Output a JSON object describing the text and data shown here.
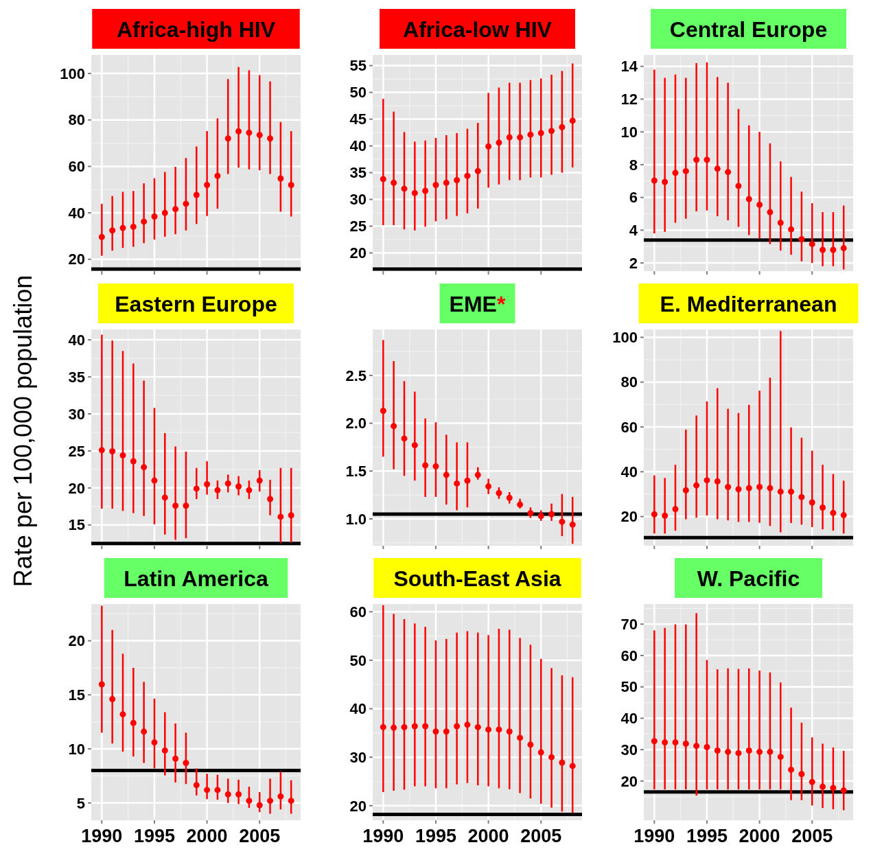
{
  "chart_data": [
    {
      "type": "scatter",
      "title": "Africa-high HIV",
      "x": [
        1990,
        1991,
        1992,
        1993,
        1994,
        1995,
        1996,
        1997,
        1998,
        1999,
        2000,
        2001,
        2002,
        2003,
        2004,
        2005,
        2006,
        2007,
        2008
      ],
      "values": [
        29.6,
        32.4,
        33.5,
        34,
        36.2,
        38.4,
        40,
        41.6,
        43.9,
        47.7,
        52,
        55.9,
        72,
        75.1,
        74.5,
        73.5,
        72,
        54.8,
        52
      ],
      "errors": [
        [
          21.5,
          43.9
        ],
        [
          23.7,
          47.2
        ],
        [
          24.9,
          49
        ],
        [
          25.4,
          49.4
        ],
        [
          26.9,
          52.7
        ],
        [
          28.5,
          54.9
        ],
        [
          29.7,
          57.6
        ],
        [
          30.8,
          59.8
        ],
        [
          32.4,
          63.6
        ],
        [
          35.2,
          68.6
        ],
        [
          38.6,
          75.2
        ],
        [
          41.8,
          80.7
        ],
        [
          56.7,
          97.6
        ],
        [
          59.5,
          102.8
        ],
        [
          58.7,
          101.4
        ],
        [
          58.3,
          99.3
        ],
        [
          56.7,
          96.6
        ],
        [
          40.5,
          79.1
        ],
        [
          38.4,
          75.2
        ]
      ],
      "color": "#ff0000",
      "marker": "circle",
      "xlim": [
        1989,
        2008.9
      ],
      "xticks": [
        1990,
        1995,
        2000,
        2005
      ],
      "ylim": [
        14.9,
        108
      ],
      "yticks": [
        20,
        40,
        60,
        80,
        100
      ],
      "grid": true,
      "tick_labels": "y",
      "ref_lines": [
        {
          "axis": "y",
          "value": 15.8,
          "color": "#000000"
        }
      ]
    },
    {
      "type": "scatter",
      "title": "Africa-low HIV",
      "x": [
        1990,
        1991,
        1992,
        1993,
        1994,
        1995,
        1996,
        1997,
        1998,
        1999,
        2000,
        2001,
        2002,
        2003,
        2004,
        2005,
        2006,
        2007,
        2008
      ],
      "values": [
        33.8,
        33.1,
        32,
        31.2,
        31.6,
        32.7,
        33.1,
        33.6,
        34.4,
        35.3,
        39.9,
        40.6,
        41.6,
        41.6,
        42.1,
        42.4,
        42.8,
        43.5,
        44.7
      ],
      "errors": [
        [
          25.2,
          48.8
        ],
        [
          25.2,
          46.4
        ],
        [
          24.4,
          42.6
        ],
        [
          24.2,
          40.8
        ],
        [
          24.9,
          41
        ],
        [
          25.9,
          41.5
        ],
        [
          26.3,
          42
        ],
        [
          26.9,
          42.4
        ],
        [
          27.4,
          43.2
        ],
        [
          28.3,
          44.3
        ],
        [
          32.2,
          49.9
        ],
        [
          32.8,
          50.9
        ],
        [
          33.6,
          51.8
        ],
        [
          33.6,
          51.8
        ],
        [
          34.1,
          52.3
        ],
        [
          34.1,
          52.6
        ],
        [
          34.6,
          53.3
        ],
        [
          35,
          54
        ],
        [
          36,
          55.4
        ]
      ],
      "color": "#ff0000",
      "marker": "circle",
      "xlim": [
        1989,
        2008.9
      ],
      "xticks": [
        1990,
        1995,
        2000,
        2005
      ],
      "ylim": [
        16.6,
        57
      ],
      "yticks": [
        20,
        25,
        30,
        35,
        40,
        45,
        50,
        55
      ],
      "grid": true,
      "tick_labels": "y",
      "ref_lines": [
        {
          "axis": "y",
          "value": 17,
          "color": "#000000"
        }
      ]
    },
    {
      "type": "scatter",
      "title": "Central Europe",
      "x": [
        1990,
        1991,
        1992,
        1993,
        1994,
        1995,
        1996,
        1997,
        1998,
        1999,
        2000,
        2001,
        2002,
        2003,
        2004,
        2005,
        2006,
        2007,
        2008
      ],
      "values": [
        7.03,
        6.95,
        7.5,
        7.6,
        8.3,
        8.3,
        7.75,
        7.55,
        6.7,
        5.9,
        5.55,
        5.1,
        4.45,
        4.05,
        3.45,
        3.15,
        2.8,
        2.8,
        2.9
      ],
      "errors": [
        [
          3.8,
          13.8
        ],
        [
          3.9,
          13.3
        ],
        [
          4.45,
          13.5
        ],
        [
          4.7,
          13.3
        ],
        [
          5.15,
          14.2
        ],
        [
          5.2,
          14.25
        ],
        [
          4.85,
          13.35
        ],
        [
          4.6,
          13
        ],
        [
          4.2,
          11.4
        ],
        [
          3.7,
          10.4
        ],
        [
          3.5,
          10
        ],
        [
          3.15,
          9.3
        ],
        [
          2.75,
          8.2
        ],
        [
          2.5,
          7.25
        ],
        [
          2.1,
          6.35
        ],
        [
          2,
          5.65
        ],
        [
          1.8,
          5.1
        ],
        [
          1.8,
          5.1
        ],
        [
          1.6,
          5.5
        ]
      ],
      "color": "#ff0000",
      "marker": "circle",
      "xlim": [
        1989,
        2008.9
      ],
      "xticks": [
        1990,
        1995,
        2000,
        2005
      ],
      "ylim": [
        1.5,
        14.7
      ],
      "yticks": [
        2,
        4,
        6,
        8,
        10,
        12,
        14
      ],
      "grid": true,
      "tick_labels": "y",
      "ref_lines": [
        {
          "axis": "y",
          "value": 3.4,
          "color": "#000000"
        }
      ]
    },
    {
      "type": "scatter",
      "title": "Eastern Europe",
      "ylabel": "Rate per 100,000 population",
      "x": [
        1990,
        1991,
        1992,
        1993,
        1994,
        1995,
        1996,
        1997,
        1998,
        1999,
        2000,
        2001,
        2002,
        2003,
        2004,
        2005,
        2006,
        2007,
        2008
      ],
      "values": [
        25.1,
        24.95,
        24.4,
        23.6,
        22.8,
        21,
        18.7,
        17.6,
        17.6,
        19.9,
        20.5,
        19.7,
        20.6,
        20.2,
        19.7,
        21,
        18.5,
        16.1,
        16.3
      ],
      "errors": [
        [
          17.2,
          40.7
        ],
        [
          17.2,
          39.9
        ],
        [
          16.9,
          38.5
        ],
        [
          16.6,
          36.8
        ],
        [
          16.2,
          34.5
        ],
        [
          15.1,
          30.8
        ],
        [
          13.7,
          27.4
        ],
        [
          13,
          25.6
        ],
        [
          13.2,
          24.9
        ],
        [
          18.5,
          22.7
        ],
        [
          19.1,
          23.6
        ],
        [
          18.5,
          21
        ],
        [
          19.4,
          21.8
        ],
        [
          19,
          21.6
        ],
        [
          18.5,
          21
        ],
        [
          19.5,
          22.4
        ],
        [
          16.3,
          21.1
        ],
        [
          12.6,
          22.7
        ],
        [
          12.6,
          22.7
        ]
      ],
      "color": "#ff0000",
      "marker": "circle",
      "xlim": [
        1989,
        2008.9
      ],
      "xticks": [
        1990,
        1995,
        2000,
        2005
      ],
      "ylim": [
        12.2,
        41.4
      ],
      "yticks": [
        15,
        20,
        25,
        30,
        35,
        40
      ],
      "grid": true,
      "tick_labels": "y",
      "ref_lines": [
        {
          "axis": "y",
          "value": 12.5,
          "color": "#000000"
        }
      ]
    },
    {
      "type": "scatter",
      "title": "EME*",
      "x": [
        1990,
        1991,
        1992,
        1993,
        1994,
        1995,
        1996,
        1997,
        1998,
        1999,
        2000,
        2001,
        2002,
        2003,
        2004,
        2005,
        2006,
        2007,
        2008
      ],
      "values": [
        2.13,
        1.97,
        1.84,
        1.77,
        1.56,
        1.55,
        1.46,
        1.37,
        1.4,
        1.46,
        1.34,
        1.27,
        1.22,
        1.15,
        1.06,
        1.03,
        1.05,
        0.97,
        0.94
      ],
      "errors": [
        [
          1.65,
          2.87
        ],
        [
          1.52,
          2.65
        ],
        [
          1.45,
          2.44
        ],
        [
          1.4,
          2.33
        ],
        [
          1.23,
          2.05
        ],
        [
          1.23,
          2.01
        ],
        [
          1.15,
          1.88
        ],
        [
          1.09,
          1.8
        ],
        [
          1.12,
          1.8
        ],
        [
          1.41,
          1.54
        ],
        [
          1.26,
          1.42
        ],
        [
          1.21,
          1.33
        ],
        [
          1.16,
          1.28
        ],
        [
          1.11,
          1.21
        ],
        [
          1.01,
          1.12
        ],
        [
          0.98,
          1.09
        ],
        [
          0.98,
          1.16
        ],
        [
          0.82,
          1.26
        ],
        [
          0.74,
          1.23
        ]
      ],
      "color": "#ff0000",
      "marker": "circle",
      "xlim": [
        1989,
        2008.9
      ],
      "xticks": [
        1990,
        1995,
        2000,
        2005
      ],
      "ylim": [
        0.72,
        2.98
      ],
      "yticks": [
        {
          "value": 1,
          "label": "1.0"
        },
        1.5,
        {
          "value": 2,
          "label": "2.0"
        },
        2.5
      ],
      "grid": true,
      "tick_labels": "y",
      "ref_lines": [
        {
          "axis": "y",
          "value": 1.05,
          "color": "#000000"
        }
      ]
    },
    {
      "type": "scatter",
      "title": "E. Mediterranean",
      "x": [
        1990,
        1991,
        1992,
        1993,
        1994,
        1995,
        1996,
        1997,
        1998,
        1999,
        2000,
        2001,
        2002,
        2003,
        2004,
        2005,
        2006,
        2007,
        2008
      ],
      "values": [
        21,
        20.4,
        23.3,
        31.7,
        33.9,
        36.2,
        35.7,
        33.2,
        32.2,
        32.7,
        33.2,
        32.7,
        31.1,
        31.1,
        28.7,
        26.3,
        24,
        21.6,
        20.6
      ],
      "errors": [
        [
          12.4,
          38.4
        ],
        [
          12.4,
          37.2
        ],
        [
          13.7,
          43.1
        ],
        [
          18.8,
          58.8
        ],
        [
          19.5,
          65.1
        ],
        [
          20.5,
          71.4
        ],
        [
          18.8,
          77.3
        ],
        [
          18.3,
          68.1
        ],
        [
          17.6,
          66.2
        ],
        [
          17.6,
          69.9
        ],
        [
          17.2,
          76.2
        ],
        [
          15.8,
          82
        ],
        [
          13,
          102.8
        ],
        [
          17.1,
          59.8
        ],
        [
          16.4,
          55.2
        ],
        [
          15.3,
          49.4
        ],
        [
          14.3,
          43.1
        ],
        [
          13.7,
          39
        ],
        [
          12.4,
          36
        ]
      ],
      "color": "#ff0000",
      "marker": "circle",
      "xlim": [
        1989,
        2008.9
      ],
      "xticks": [
        1990,
        1995,
        2000,
        2005
      ],
      "ylim": [
        7,
        103.5
      ],
      "yticks": [
        20,
        40,
        60,
        80,
        100
      ],
      "grid": true,
      "tick_labels": "y",
      "ref_lines": [
        {
          "axis": "y",
          "value": 10.6,
          "color": "#000000"
        }
      ]
    },
    {
      "type": "scatter",
      "title": "Latin America",
      "x": [
        1990,
        1991,
        1992,
        1993,
        1994,
        1995,
        1996,
        1997,
        1998,
        1999,
        2000,
        2001,
        2002,
        2003,
        2004,
        2005,
        2006,
        2007,
        2008
      ],
      "values": [
        15.97,
        14.6,
        13.2,
        12.4,
        11.6,
        10.6,
        9.85,
        9.1,
        8.7,
        6.65,
        6.2,
        6.2,
        5.8,
        5.8,
        5.2,
        4.8,
        5.2,
        5.6,
        5.2
      ],
      "errors": [
        [
          11.5,
          23.25
        ],
        [
          10.5,
          21
        ],
        [
          9.75,
          18.8
        ],
        [
          9.3,
          17.5
        ],
        [
          8.7,
          16.2
        ],
        [
          8.2,
          14.65
        ],
        [
          7.55,
          13.4
        ],
        [
          6.9,
          12.35
        ],
        [
          6.75,
          11.5
        ],
        [
          5.7,
          8.2
        ],
        [
          5.35,
          7.7
        ],
        [
          5.3,
          7.6
        ],
        [
          5,
          7.25
        ],
        [
          4.9,
          7.15
        ],
        [
          4.55,
          6.5
        ],
        [
          4.15,
          6
        ],
        [
          4,
          7.25
        ],
        [
          4.4,
          7.9
        ],
        [
          4,
          7.1
        ]
      ],
      "color": "#ff0000",
      "marker": "circle",
      "xlim": [
        1989,
        2008.9
      ],
      "xticks": [
        1990,
        1995,
        2000,
        2005
      ],
      "ylim": [
        3.4,
        23.4
      ],
      "yticks": [
        5,
        10,
        15,
        20
      ],
      "grid": true,
      "ref_lines": [
        {
          "axis": "y",
          "value": 8,
          "color": "#000000"
        }
      ]
    },
    {
      "type": "scatter",
      "title": "South-East Asia",
      "x": [
        1990,
        1991,
        1992,
        1993,
        1994,
        1995,
        1996,
        1997,
        1998,
        1999,
        2000,
        2001,
        2002,
        2003,
        2004,
        2005,
        2006,
        2007,
        2008
      ],
      "values": [
        36.2,
        36.1,
        36.2,
        36.4,
        36.4,
        35.3,
        35.3,
        36.4,
        36.7,
        36.2,
        35.7,
        35.7,
        35.3,
        34,
        32.6,
        31,
        30,
        28.9,
        28.2
      ],
      "errors": [
        [
          22.8,
          61.4
        ],
        [
          23.1,
          59.6
        ],
        [
          23.3,
          58.5
        ],
        [
          24,
          57.6
        ],
        [
          24,
          56.9
        ],
        [
          23.6,
          54.1
        ],
        [
          23.6,
          54.4
        ],
        [
          24.4,
          55.7
        ],
        [
          24.7,
          56
        ],
        [
          24.2,
          55.7
        ],
        [
          24,
          55.2
        ],
        [
          23.6,
          56.5
        ],
        [
          23.4,
          56.3
        ],
        [
          22.6,
          54.6
        ],
        [
          21.5,
          53.2
        ],
        [
          20.4,
          50.3
        ],
        [
          19.6,
          48.4
        ],
        [
          18.8,
          46.9
        ],
        [
          18.5,
          46.5
        ]
      ],
      "color": "#ff0000",
      "marker": "circle",
      "xlim": [
        1989,
        2008.9
      ],
      "xticks": [
        1990,
        1995,
        2000,
        2005
      ],
      "ylim": [
        17,
        61.6
      ],
      "yticks": [
        20,
        30,
        40,
        50,
        60
      ],
      "grid": true,
      "ref_lines": [
        {
          "axis": "y",
          "value": 18.2,
          "color": "#000000"
        }
      ]
    },
    {
      "type": "scatter",
      "title": "W. Pacific",
      "x": [
        1990,
        1991,
        1992,
        1993,
        1994,
        1995,
        1996,
        1997,
        1998,
        1999,
        2000,
        2001,
        2002,
        2003,
        2004,
        2005,
        2006,
        2007,
        2008
      ],
      "values": [
        32.7,
        32.3,
        32.3,
        31.9,
        31.2,
        30.8,
        29.7,
        29.3,
        28.9,
        29.7,
        29.3,
        29.3,
        27.7,
        23.6,
        22.2,
        19.7,
        18.2,
        17.8,
        17
      ],
      "errors": [
        [
          17.3,
          68
        ],
        [
          17.3,
          68.8
        ],
        [
          17.3,
          69.9
        ],
        [
          17.3,
          69.9
        ],
        [
          15.4,
          73.5
        ],
        [
          17.3,
          58.6
        ],
        [
          17.3,
          55.6
        ],
        [
          17.3,
          55.9
        ],
        [
          17.3,
          55.7
        ],
        [
          17.3,
          55.9
        ],
        [
          17.3,
          55.2
        ],
        [
          17.3,
          54.6
        ],
        [
          17.3,
          51.4
        ],
        [
          13.9,
          43.4
        ],
        [
          13.9,
          38.6
        ],
        [
          12.2,
          33.9
        ],
        [
          11.4,
          31.9
        ],
        [
          11,
          30.7
        ],
        [
          10.7,
          29.6
        ]
      ],
      "color": "#ff0000",
      "marker": "circle",
      "xlim": [
        1989,
        2008.9
      ],
      "xticks": [
        1990,
        1995,
        2000,
        2005
      ],
      "ylim": [
        7.5,
        76.4
      ],
      "yticks": [
        20,
        30,
        40,
        50,
        60,
        70
      ],
      "grid": true,
      "ref_lines": [
        {
          "axis": "y",
          "value": 16.5,
          "color": "#000000"
        }
      ]
    }
  ]
}
